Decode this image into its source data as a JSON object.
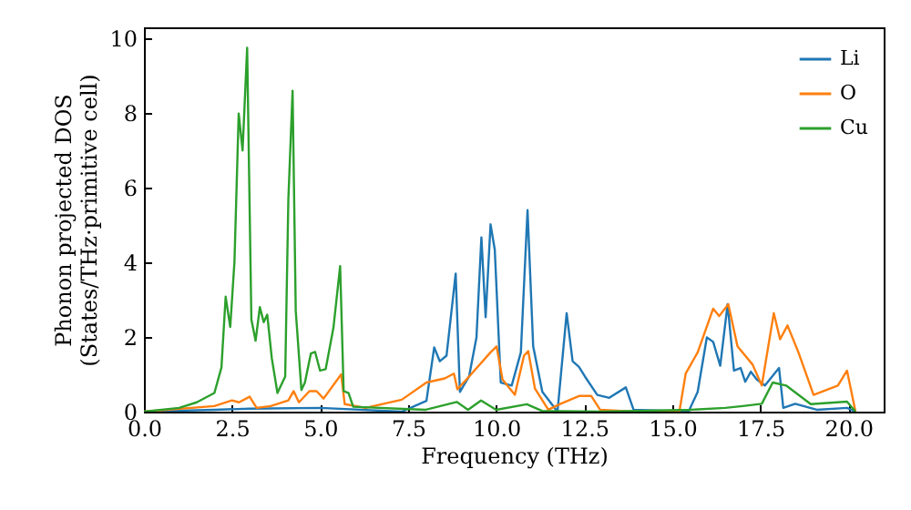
{
  "chart_data": {
    "type": "line",
    "xlabel": "Frequency (THz)",
    "ylabel": "Phonon projected DOS\n(States/THz·primitive cell)",
    "xlim": [
      0,
      21
    ],
    "ylim": [
      0,
      10.3
    ],
    "xticks": [
      {
        "value": 0,
        "label": "0.0"
      },
      {
        "value": 2.5,
        "label": "2.5"
      },
      {
        "value": 5,
        "label": "5.0"
      },
      {
        "value": 7.5,
        "label": "7.5"
      },
      {
        "value": 10,
        "label": "10.0"
      },
      {
        "value": 12.5,
        "label": "12.5"
      },
      {
        "value": 15,
        "label": "15.0"
      },
      {
        "value": 17.5,
        "label": "17.5"
      },
      {
        "value": 20,
        "label": "20.0"
      }
    ],
    "yticks": [
      0,
      2,
      4,
      6,
      8,
      10
    ],
    "legend": "top right",
    "grid": false,
    "series": [
      {
        "name": "Li",
        "color": "#1f77b4",
        "x": [
          0,
          2,
          3,
          5,
          7.32,
          8.02,
          8.24,
          8.4,
          8.59,
          8.85,
          8.97,
          9.23,
          9.44,
          9.58,
          9.7,
          9.84,
          9.96,
          10.13,
          10.44,
          10.7,
          10.89,
          11.05,
          11.31,
          11.74,
          12.0,
          12.17,
          12.35,
          12.52,
          12.87,
          13.21,
          13.68,
          13.9,
          15.46,
          15.72,
          15.98,
          16.16,
          16.36,
          16.57,
          16.75,
          16.94,
          17.07,
          17.23,
          17.4,
          17.63,
          18.03,
          18.15,
          18.49,
          19.1,
          19.96,
          20.2
        ],
        "values": [
          0,
          0.05,
          0.08,
          0.1,
          0,
          0.29,
          1.72,
          1.35,
          1.5,
          3.7,
          0.53,
          0.94,
          1.99,
          4.67,
          2.53,
          5.02,
          4.34,
          0.78,
          0.7,
          1.59,
          5.4,
          1.75,
          0.53,
          0,
          2.64,
          1.35,
          1.2,
          0.94,
          0.45,
          0.37,
          0.65,
          0.05,
          0,
          0.53,
          1.99,
          1.87,
          1.23,
          2.88,
          1.1,
          1.17,
          0.8,
          1.07,
          0.86,
          0.7,
          1.17,
          0.1,
          0.21,
          0.05,
          0.1,
          0
        ]
      },
      {
        "name": "O",
        "color": "#ff7f0e",
        "x": [
          0,
          2.0,
          2.5,
          2.7,
          3.0,
          3.2,
          3.6,
          4.1,
          4.25,
          4.4,
          4.7,
          4.9,
          5.1,
          5.6,
          5.7,
          6.29,
          7.32,
          8.02,
          8.54,
          8.8,
          8.9,
          9.23,
          9.84,
          10.01,
          10.18,
          10.53,
          10.79,
          10.91,
          11.1,
          11.48,
          11.83,
          12.35,
          12.7,
          12.95,
          13.9,
          15.2,
          15.38,
          15.72,
          16.16,
          16.33,
          16.59,
          16.85,
          17.28,
          17.54,
          17.88,
          18.06,
          18.27,
          18.58,
          19.01,
          19.7,
          19.96,
          20.2
        ],
        "values": [
          0,
          0.15,
          0.3,
          0.25,
          0.4,
          0.1,
          0.15,
          0.3,
          0.55,
          0.25,
          0.55,
          0.55,
          0.35,
          1.0,
          0.2,
          0.1,
          0.32,
          0.78,
          0.89,
          1.02,
          0.6,
          0.94,
          1.59,
          1.75,
          0.86,
          0.45,
          1.5,
          1.62,
          0.62,
          0.05,
          0.21,
          0.42,
          0.42,
          0.05,
          0,
          0,
          1.02,
          1.59,
          2.76,
          2.56,
          2.88,
          1.75,
          1.26,
          0.7,
          2.64,
          1.94,
          2.31,
          1.59,
          0.45,
          0.7,
          1.1,
          0
        ]
      },
      {
        "name": "Cu",
        "color": "#2ca02c",
        "x": [
          0,
          1,
          1.5,
          2.0,
          2.2,
          2.32,
          2.45,
          2.57,
          2.69,
          2.8,
          2.93,
          3.05,
          3.17,
          3.29,
          3.4,
          3.5,
          3.63,
          3.79,
          4.01,
          4.1,
          4.22,
          4.31,
          4.47,
          4.57,
          4.74,
          4.86,
          5.0,
          5.16,
          5.38,
          5.57,
          5.67,
          5.81,
          5.94,
          8.0,
          8.88,
          9.2,
          9.57,
          10.0,
          10.87,
          11.3,
          13.0,
          15.5,
          16.5,
          17.0,
          17.54,
          17.85,
          18.23,
          18.58,
          18.93,
          19.96,
          20.2
        ],
        "values": [
          0,
          0.1,
          0.25,
          0.5,
          1.18,
          3.08,
          2.27,
          4.02,
          7.99,
          7.0,
          9.75,
          2.47,
          1.9,
          2.8,
          2.4,
          2.6,
          1.43,
          0.5,
          0.94,
          5.7,
          8.6,
          2.7,
          0.58,
          0.78,
          1.56,
          1.6,
          1.1,
          1.14,
          2.25,
          3.9,
          0.55,
          0.5,
          0.13,
          0.05,
          0.26,
          0.05,
          0.3,
          0.05,
          0.2,
          0.02,
          0,
          0.05,
          0.1,
          0.15,
          0.21,
          0.78,
          0.7,
          0.45,
          0.2,
          0.27,
          0
        ]
      }
    ]
  }
}
